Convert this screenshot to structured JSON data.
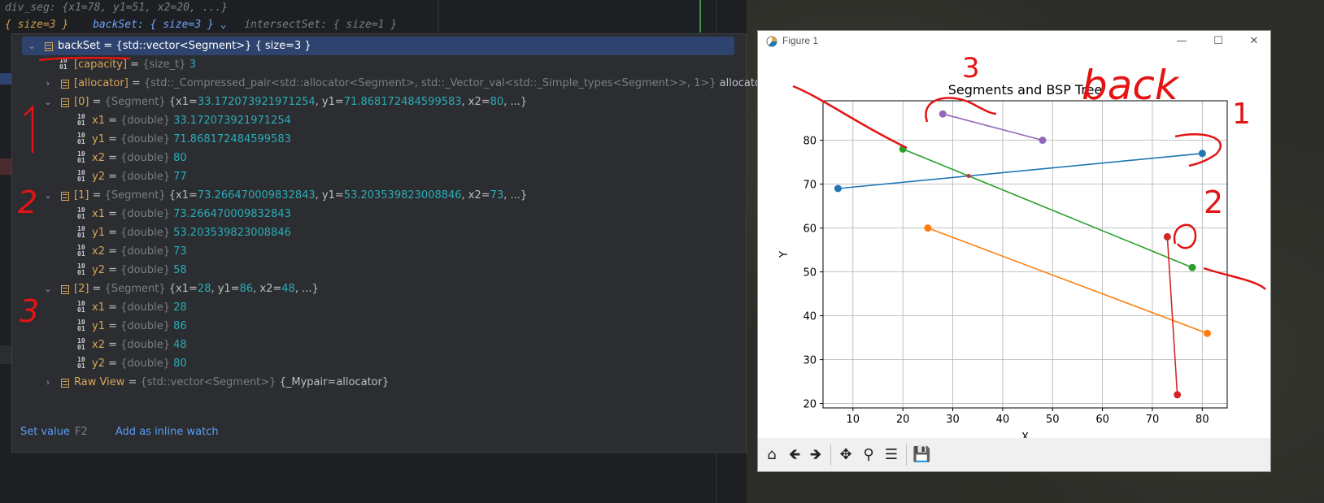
{
  "editor": {
    "line1": "div_seg: {x1=78, y1=51, x2=20, ...}",
    "line2_size": "{ size=3 }",
    "line2_back": "backSet: { size=3 }",
    "line2_inter": "intersectSet: { size=1 }"
  },
  "debugger": {
    "rows": [
      {
        "chev": "v",
        "icon": "field",
        "name": "backSet",
        "rest_type": "{std::vector<Segment>}",
        "rest_plain": "{ size=3 }",
        "selected": true,
        "indent": 0
      },
      {
        "chev": "",
        "icon": "bin",
        "name": "[capacity]",
        "rest_type": "{size_t}",
        "rest_plain": "3",
        "indent": 1
      },
      {
        "chev": ">",
        "icon": "field",
        "name": "[allocator]",
        "rest_type": "{std::_Compressed_pair<std::allocator<Segment>, std::_Vector_val<std::_Simple_types<Segment>>, 1>}",
        "rest_plain": "allocator",
        "indent": 1
      },
      {
        "chev": "v",
        "icon": "field",
        "name": "[0]",
        "rest_type": "{Segment}",
        "rest_plain": "{x1=33.172073921971254, y1=71.868172484599583, x2=80, ...}",
        "indent": 1
      },
      {
        "chev": "",
        "icon": "bin",
        "name": "x1",
        "rest_type": "{double}",
        "rest_plain": "33.172073921971254",
        "indent": 2
      },
      {
        "chev": "",
        "icon": "bin",
        "name": "y1",
        "rest_type": "{double}",
        "rest_plain": "71.868172484599583",
        "indent": 2
      },
      {
        "chev": "",
        "icon": "bin",
        "name": "x2",
        "rest_type": "{double}",
        "rest_plain": "80",
        "indent": 2
      },
      {
        "chev": "",
        "icon": "bin",
        "name": "y2",
        "rest_type": "{double}",
        "rest_plain": "77",
        "indent": 2
      },
      {
        "chev": "v",
        "icon": "field",
        "name": "[1]",
        "rest_type": "{Segment}",
        "rest_plain": "{x1=73.266470009832843, y1=53.203539823008846, x2=73, ...}",
        "indent": 1
      },
      {
        "chev": "",
        "icon": "bin",
        "name": "x1",
        "rest_type": "{double}",
        "rest_plain": "73.266470009832843",
        "indent": 2
      },
      {
        "chev": "",
        "icon": "bin",
        "name": "y1",
        "rest_type": "{double}",
        "rest_plain": "53.203539823008846",
        "indent": 2
      },
      {
        "chev": "",
        "icon": "bin",
        "name": "x2",
        "rest_type": "{double}",
        "rest_plain": "73",
        "indent": 2
      },
      {
        "chev": "",
        "icon": "bin",
        "name": "y2",
        "rest_type": "{double}",
        "rest_plain": "58",
        "indent": 2
      },
      {
        "chev": "v",
        "icon": "field",
        "name": "[2]",
        "rest_type": "{Segment}",
        "rest_plain": "{x1=28, y1=86, x2=48, ...}",
        "indent": 1
      },
      {
        "chev": "",
        "icon": "bin",
        "name": "x1",
        "rest_type": "{double}",
        "rest_plain": "28",
        "indent": 2
      },
      {
        "chev": "",
        "icon": "bin",
        "name": "y1",
        "rest_type": "{double}",
        "rest_plain": "86",
        "indent": 2
      },
      {
        "chev": "",
        "icon": "bin",
        "name": "x2",
        "rest_type": "{double}",
        "rest_plain": "48",
        "indent": 2
      },
      {
        "chev": "",
        "icon": "bin",
        "name": "y2",
        "rest_type": "{double}",
        "rest_plain": "80",
        "indent": 2
      },
      {
        "chev": ">",
        "icon": "field",
        "name": "Raw View",
        "rest_type": "{std::vector<Segment>}",
        "rest_plain": "{_Mypair=allocator}",
        "indent": 1
      }
    ],
    "footer": {
      "set_value": "Set value",
      "set_value_key": "F2",
      "inline_watch": "Add as inline watch"
    }
  },
  "figure": {
    "window_title": "Figure 1",
    "toolbar_icons": [
      "home-icon",
      "back-arrow-icon",
      "forward-arrow-icon",
      "pan-icon",
      "zoom-icon",
      "configure-icon",
      "save-icon"
    ]
  },
  "chart_data": {
    "type": "line",
    "title": "Segments and BSP Tree",
    "xlabel": "X",
    "ylabel": "Y",
    "xlim": [
      4,
      85
    ],
    "ylim": [
      19,
      89
    ],
    "xticks": [
      10,
      20,
      30,
      40,
      50,
      60,
      70,
      80
    ],
    "yticks": [
      20,
      30,
      40,
      50,
      60,
      70,
      80
    ],
    "grid": true,
    "series": [
      {
        "color": "#1f77b4",
        "points": [
          [
            7,
            69
          ],
          [
            80,
            77
          ]
        ]
      },
      {
        "color": "#ff7f0e",
        "points": [
          [
            25,
            60
          ],
          [
            81,
            36
          ]
        ]
      },
      {
        "color": "#2ca02c",
        "points": [
          [
            20,
            78
          ],
          [
            78,
            51
          ]
        ]
      },
      {
        "color": "#d62728",
        "points": [
          [
            73,
            58
          ],
          [
            75,
            22
          ]
        ]
      },
      {
        "color": "#9467bd",
        "points": [
          [
            28,
            86
          ],
          [
            48,
            80
          ]
        ]
      }
    ],
    "annotations": [
      {
        "x": 33.17,
        "y": 71.87,
        "color": "#d62728",
        "type": "point"
      }
    ]
  },
  "annotations": {
    "n1": "1",
    "n2": "2",
    "n3": "3",
    "chart_3": "3",
    "chart_back": "back",
    "chart_1": "1",
    "chart_2": "2"
  }
}
